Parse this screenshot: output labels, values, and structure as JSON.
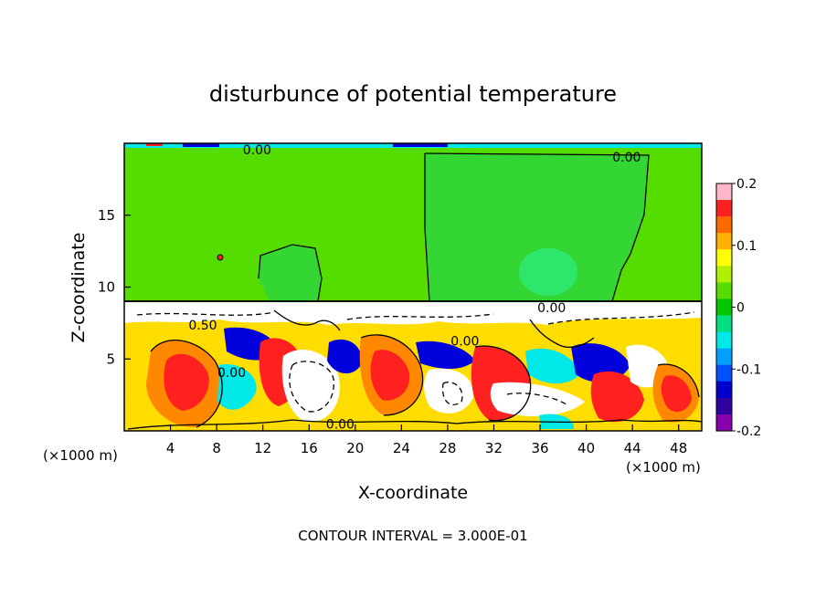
{
  "chart_data": {
    "type": "heatmap",
    "title": "disturbunce of potential temperature",
    "xlabel": "X-coordinate",
    "ylabel": "Z-coordinate",
    "x_unit_left": "(×1000 m)",
    "x_unit_right": "(×1000 m)",
    "xlim": [
      0,
      50
    ],
    "ylim": [
      0,
      20
    ],
    "x_ticks": [
      4,
      8,
      12,
      16,
      20,
      24,
      28,
      32,
      36,
      40,
      44,
      48
    ],
    "y_ticks": [
      5,
      10,
      15
    ],
    "footer": "CONTOUR INTERVAL = 3.000E-01",
    "contour_labels": [
      {
        "text": "0.00",
        "x": 11.5,
        "z": 19.5
      },
      {
        "text": "0.00",
        "x": 43.5,
        "z": 19.0
      },
      {
        "text": "0.00",
        "x": 37.0,
        "z": 8.5
      },
      {
        "text": "0.00",
        "x": 29.5,
        "z": 6.2
      },
      {
        "text": "0.50",
        "x": 6.8,
        "z": 7.3
      },
      {
        "text": "0.00",
        "x": 9.3,
        "z": 4.0
      },
      {
        "text": "0.00",
        "x": 18.7,
        "z": 0.4
      }
    ],
    "colorbar": {
      "min": -0.2,
      "max": 0.2,
      "ticks": [
        0.2,
        0.1,
        0,
        -0.1,
        -0.2
      ],
      "tick_labels": [
        "0.2",
        "0.1",
        "0",
        "-0.1",
        "-0.2"
      ],
      "colors": [
        "#ffb6c8",
        "#ff2020",
        "#ff6a00",
        "#ffb000",
        "#ffff00",
        "#b0f000",
        "#55dd00",
        "#00c800",
        "#00e080",
        "#00e8e8",
        "#00a0ff",
        "#0050ff",
        "#0000cc",
        "#3000a0",
        "#8a00b0"
      ]
    },
    "field_colors": {
      "upper_layer": "#55dd00",
      "upper_patch": "#33d633",
      "patch_light": "#2ee66c",
      "lower_positive_high": "#ff2020",
      "lower_positive_mid": "#ff8800",
      "lower_positive_low": "#ffdd00",
      "lower_negative_mid": "#00e8e8",
      "lower_negative_high": "#0000dd",
      "lower_extreme": "#ffffff"
    }
  }
}
